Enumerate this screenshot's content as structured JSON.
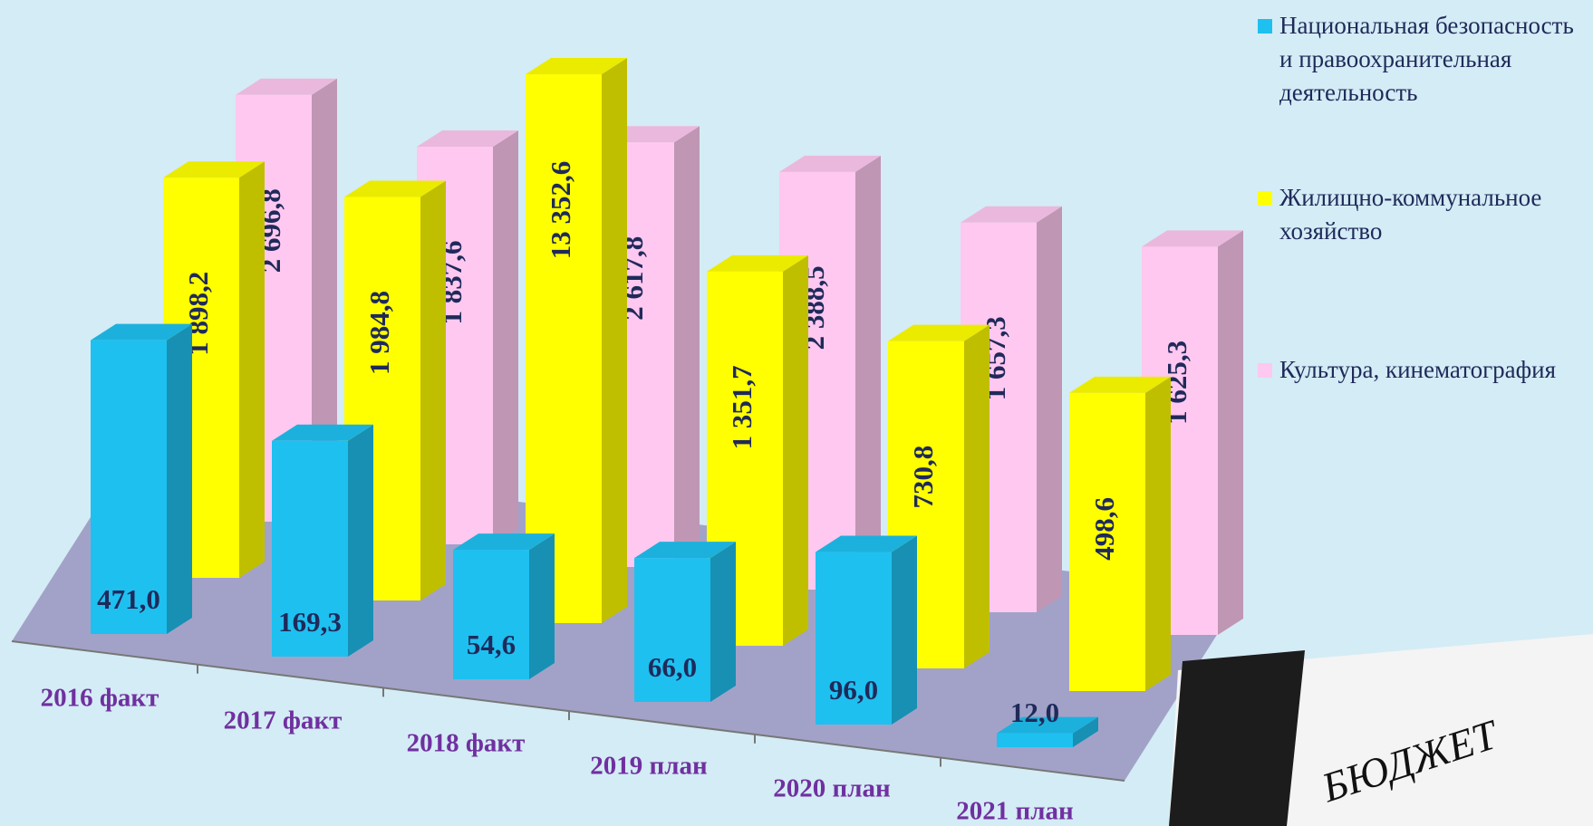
{
  "chart_data": {
    "type": "bar3d",
    "categories": [
      "2016 факт",
      "2017 факт",
      "2018 факт",
      "2019 план",
      "2020 план",
      "2021 план"
    ],
    "series": [
      {
        "name": "Национальная безопасность и правоохранительная деятельность",
        "color": "#1ec0f0",
        "values": [
          471.0,
          169.3,
          54.6,
          66.0,
          96.0,
          12.0
        ],
        "value_labels": [
          "471,0",
          "169,3",
          "54,6",
          "66,0",
          "96,0",
          "12,0"
        ]
      },
      {
        "name": "Жилищно-коммунальное хозяйство",
        "color": "#ffff00",
        "values": [
          1898.2,
          1984.8,
          13352.6,
          1351.7,
          730.8,
          498.6
        ],
        "value_labels": [
          "1 898,2",
          "1 984,8",
          "13 352,6",
          "1 351,7",
          "730,8",
          "498,6"
        ]
      },
      {
        "name": "Культура, кинематография",
        "color": "#ffc8f0",
        "values": [
          2696.8,
          1837.6,
          2617.8,
          2388.5,
          1657.3,
          1625.3
        ],
        "value_labels": [
          "2 696,8",
          "1 837,6",
          "2 617,8",
          "2 388,5",
          "1 657,3",
          "1 625,3"
        ]
      }
    ],
    "ylim": [
      10,
      20000
    ],
    "log_scale": true,
    "legend": "right",
    "annotations": [
      "БЮДЖЕТ"
    ]
  }
}
